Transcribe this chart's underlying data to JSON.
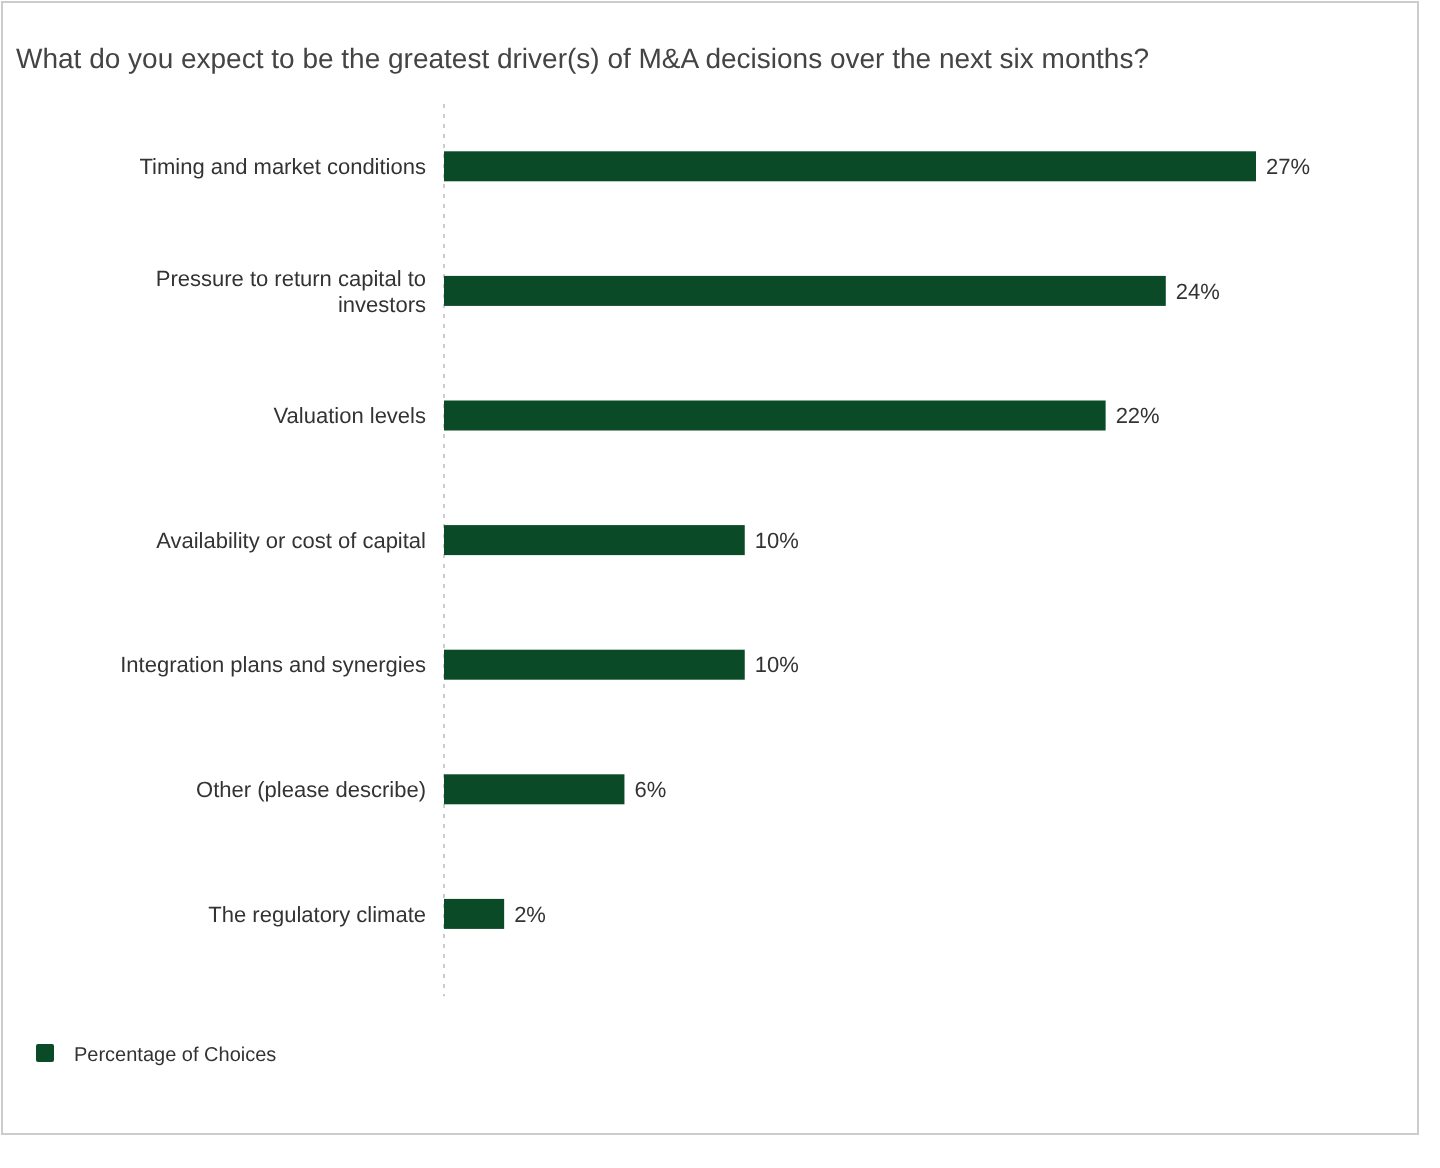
{
  "chart_data": {
    "type": "bar",
    "orientation": "horizontal",
    "title": "What do you expect to be the greatest driver(s) of M&A decisions over the next six months?",
    "categories": [
      "Timing and market conditions",
      "Pressure to return capital to investors",
      "Valuation levels",
      "Availability or cost of capital",
      "Integration plans and synergies",
      "Other (please describe)",
      "The regulatory climate"
    ],
    "series": [
      {
        "name": "Percentage of Choices",
        "color": "#0b4a26",
        "values": [
          27,
          24,
          22,
          10,
          10,
          6,
          2
        ],
        "value_labels": [
          "27%",
          "24%",
          "22%",
          "10%",
          "10%",
          "6%",
          "2%"
        ]
      }
    ],
    "legend": "bottom left"
  }
}
